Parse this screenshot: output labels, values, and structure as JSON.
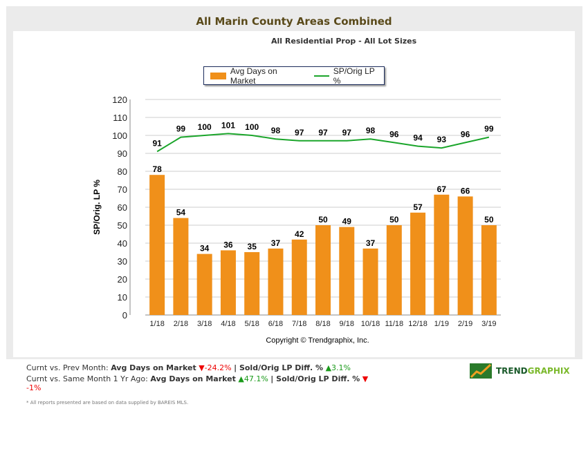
{
  "header": {
    "title": "All Marin County Areas Combined",
    "subtitle": "All Residential Prop - All Lot Sizes"
  },
  "chart_data": {
    "type": "bar",
    "categories": [
      "1/18",
      "2/18",
      "3/18",
      "4/18",
      "5/18",
      "6/18",
      "7/18",
      "8/18",
      "9/18",
      "10/18",
      "11/18",
      "12/18",
      "1/19",
      "2/19",
      "3/19"
    ],
    "series": [
      {
        "name": "Avg Days on Market",
        "type": "bar",
        "color": "#f0901a",
        "values": [
          78,
          54,
          34,
          36,
          35,
          37,
          42,
          50,
          49,
          37,
          50,
          57,
          67,
          66,
          50
        ]
      },
      {
        "name": "SP/Orig LP %",
        "type": "line",
        "color": "#1aa52a",
        "values": [
          91,
          99,
          100,
          101,
          100,
          98,
          97,
          97,
          97,
          98,
          96,
          94,
          93,
          96,
          99
        ]
      }
    ],
    "ylabel": "SP/Orig. LP %",
    "ylim": [
      0,
      120
    ],
    "yticks": [
      0,
      10,
      20,
      30,
      40,
      50,
      60,
      70,
      80,
      90,
      100,
      110,
      120
    ],
    "grid": true,
    "legend": "top-center",
    "copyright": "Copyright © Trendgraphix, Inc."
  },
  "footer": {
    "row1_label": "Curnt vs. Prev Month:",
    "row1_dom": "Avg Days on Market",
    "row1_dom_val": "-24.2%",
    "row1_sep": "| Sold/Orig LP Diff. %",
    "row1_lp_val": "3.1%",
    "row2_label": "Curnt vs. Same Month 1 Yr Ago:",
    "row2_dom": "Avg Days on Market",
    "row2_dom_val": "47.1%",
    "row2_sep": "| Sold/Orig LP Diff. %",
    "row2_lp_val": "-1%",
    "note": "* All reports presented are based on data supplied by BAREIS MLS.",
    "logo": {
      "a": "TREND",
      "b": "GRAPHIX"
    }
  }
}
